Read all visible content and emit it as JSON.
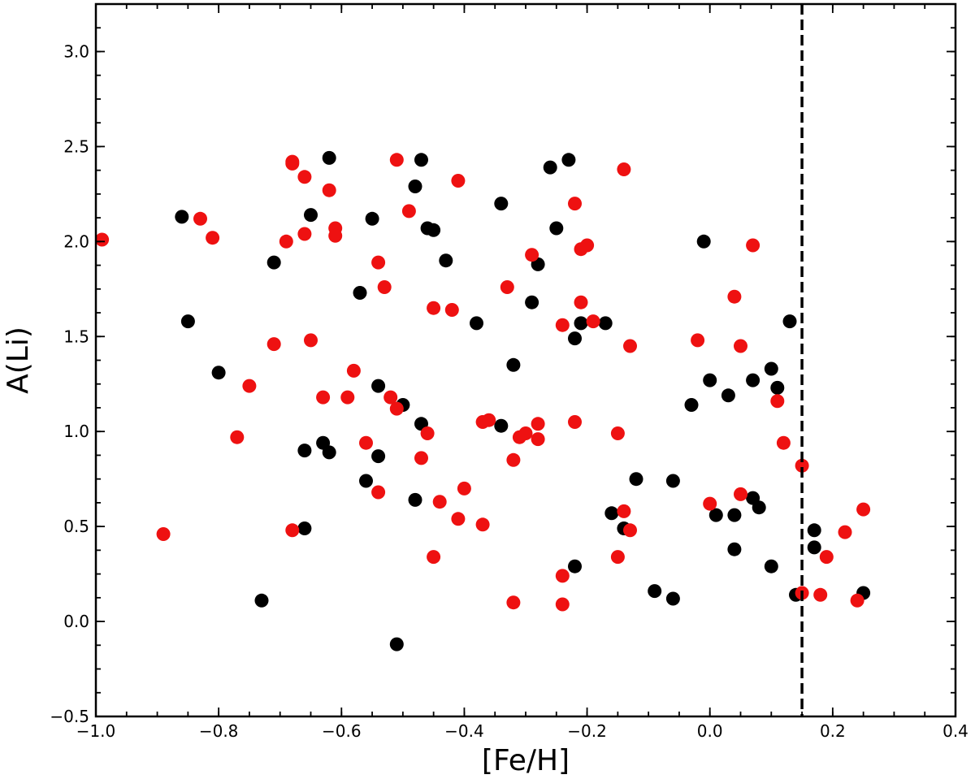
{
  "chart_data": {
    "type": "scatter",
    "title": "",
    "xlabel": "[Fe/H]",
    "ylabel": "A(Li)",
    "xlim": [
      -1.0,
      0.4
    ],
    "ylim": [
      -0.5,
      3.25
    ],
    "xticks": [
      -1.0,
      -0.8,
      -0.6,
      -0.4,
      -0.2,
      0.0,
      0.2,
      0.4
    ],
    "xtick_labels": [
      "−1.0",
      "−0.8",
      "−0.6",
      "−0.4",
      "−0.2",
      "0.0",
      "0.2",
      "0.4"
    ],
    "yticks": [
      -0.5,
      0.0,
      0.5,
      1.0,
      1.5,
      2.0,
      2.5,
      3.0
    ],
    "ytick_labels": [
      "−0.5",
      "0.0",
      "0.5",
      "1.0",
      "1.5",
      "2.0",
      "2.5",
      "3.0"
    ],
    "grid": false,
    "vline": {
      "x": 0.15,
      "style": "dashed",
      "color": "#000000"
    },
    "series": [
      {
        "color": "#000000",
        "points": [
          [
            -0.86,
            2.13
          ],
          [
            -0.85,
            1.58
          ],
          [
            -0.8,
            1.31
          ],
          [
            -0.73,
            0.11
          ],
          [
            -0.71,
            1.89
          ],
          [
            -0.66,
            0.9
          ],
          [
            -0.66,
            0.49
          ],
          [
            -0.65,
            2.14
          ],
          [
            -0.63,
            0.94
          ],
          [
            -0.62,
            0.89
          ],
          [
            -0.62,
            2.44
          ],
          [
            -0.57,
            1.73
          ],
          [
            -0.56,
            0.74
          ],
          [
            -0.55,
            2.12
          ],
          [
            -0.54,
            1.24
          ],
          [
            -0.54,
            0.87
          ],
          [
            -0.51,
            -0.12
          ],
          [
            -0.5,
            1.14
          ],
          [
            -0.48,
            2.29
          ],
          [
            -0.48,
            0.64
          ],
          [
            -0.47,
            2.43
          ],
          [
            -0.47,
            1.04
          ],
          [
            -0.46,
            2.07
          ],
          [
            -0.45,
            2.06
          ],
          [
            -0.43,
            1.9
          ],
          [
            -0.38,
            1.57
          ],
          [
            -0.34,
            2.2
          ],
          [
            -0.34,
            1.03
          ],
          [
            -0.32,
            1.35
          ],
          [
            -0.29,
            1.68
          ],
          [
            -0.28,
            1.88
          ],
          [
            -0.26,
            2.39
          ],
          [
            -0.25,
            2.07
          ],
          [
            -0.23,
            2.43
          ],
          [
            -0.22,
            1.49
          ],
          [
            -0.22,
            0.29
          ],
          [
            -0.21,
            1.57
          ],
          [
            -0.17,
            1.57
          ],
          [
            -0.16,
            0.57
          ],
          [
            -0.14,
            0.49
          ],
          [
            -0.12,
            0.75
          ],
          [
            -0.09,
            0.16
          ],
          [
            -0.06,
            0.74
          ],
          [
            -0.06,
            0.12
          ],
          [
            -0.03,
            1.14
          ],
          [
            -0.01,
            2.0
          ],
          [
            0.0,
            1.27
          ],
          [
            0.01,
            0.56
          ],
          [
            0.03,
            1.19
          ],
          [
            0.04,
            0.56
          ],
          [
            0.04,
            0.38
          ],
          [
            0.07,
            1.27
          ],
          [
            0.07,
            0.65
          ],
          [
            0.08,
            0.6
          ],
          [
            0.1,
            1.33
          ],
          [
            0.1,
            0.29
          ],
          [
            0.11,
            1.23
          ],
          [
            0.13,
            1.58
          ],
          [
            0.14,
            0.14
          ],
          [
            0.17,
            0.48
          ],
          [
            0.17,
            0.39
          ],
          [
            0.25,
            0.15
          ]
        ]
      },
      {
        "color": "#ee1111",
        "points": [
          [
            -0.99,
            2.01
          ],
          [
            -0.89,
            0.46
          ],
          [
            -0.83,
            2.12
          ],
          [
            -0.81,
            2.02
          ],
          [
            -0.77,
            0.97
          ],
          [
            -0.75,
            1.24
          ],
          [
            -0.71,
            1.46
          ],
          [
            -0.69,
            2.0
          ],
          [
            -0.68,
            2.42
          ],
          [
            -0.68,
            2.41
          ],
          [
            -0.68,
            0.48
          ],
          [
            -0.66,
            2.34
          ],
          [
            -0.66,
            2.04
          ],
          [
            -0.65,
            1.48
          ],
          [
            -0.63,
            1.18
          ],
          [
            -0.62,
            2.27
          ],
          [
            -0.61,
            2.07
          ],
          [
            -0.61,
            2.03
          ],
          [
            -0.59,
            1.18
          ],
          [
            -0.58,
            1.32
          ],
          [
            -0.56,
            0.94
          ],
          [
            -0.54,
            1.89
          ],
          [
            -0.54,
            0.68
          ],
          [
            -0.53,
            1.76
          ],
          [
            -0.52,
            1.18
          ],
          [
            -0.51,
            1.12
          ],
          [
            -0.51,
            2.43
          ],
          [
            -0.49,
            2.16
          ],
          [
            -0.47,
            0.86
          ],
          [
            -0.46,
            0.99
          ],
          [
            -0.45,
            1.65
          ],
          [
            -0.45,
            0.34
          ],
          [
            -0.44,
            0.63
          ],
          [
            -0.42,
            1.64
          ],
          [
            -0.41,
            2.32
          ],
          [
            -0.41,
            0.54
          ],
          [
            -0.4,
            0.7
          ],
          [
            -0.37,
            1.05
          ],
          [
            -0.37,
            0.51
          ],
          [
            -0.36,
            1.06
          ],
          [
            -0.33,
            1.76
          ],
          [
            -0.32,
            0.85
          ],
          [
            -0.32,
            0.1
          ],
          [
            -0.31,
            0.97
          ],
          [
            -0.3,
            0.99
          ],
          [
            -0.29,
            1.93
          ],
          [
            -0.28,
            1.04
          ],
          [
            -0.28,
            0.96
          ],
          [
            -0.24,
            1.56
          ],
          [
            -0.24,
            0.24
          ],
          [
            -0.24,
            0.09
          ],
          [
            -0.22,
            2.2
          ],
          [
            -0.22,
            1.05
          ],
          [
            -0.21,
            1.96
          ],
          [
            -0.21,
            1.68
          ],
          [
            -0.2,
            1.98
          ],
          [
            -0.19,
            1.58
          ],
          [
            -0.15,
            0.99
          ],
          [
            -0.15,
            0.34
          ],
          [
            -0.14,
            2.38
          ],
          [
            -0.14,
            0.58
          ],
          [
            -0.13,
            1.45
          ],
          [
            -0.13,
            0.48
          ],
          [
            -0.02,
            1.48
          ],
          [
            0.0,
            0.62
          ],
          [
            0.04,
            1.71
          ],
          [
            0.05,
            1.45
          ],
          [
            0.05,
            0.67
          ],
          [
            0.07,
            1.98
          ],
          [
            0.11,
            1.16
          ],
          [
            0.12,
            0.94
          ],
          [
            0.15,
            0.82
          ],
          [
            0.15,
            0.15
          ],
          [
            0.18,
            0.14
          ],
          [
            0.19,
            0.34
          ],
          [
            0.22,
            0.47
          ],
          [
            0.24,
            0.11
          ],
          [
            0.25,
            0.59
          ]
        ]
      }
    ]
  }
}
